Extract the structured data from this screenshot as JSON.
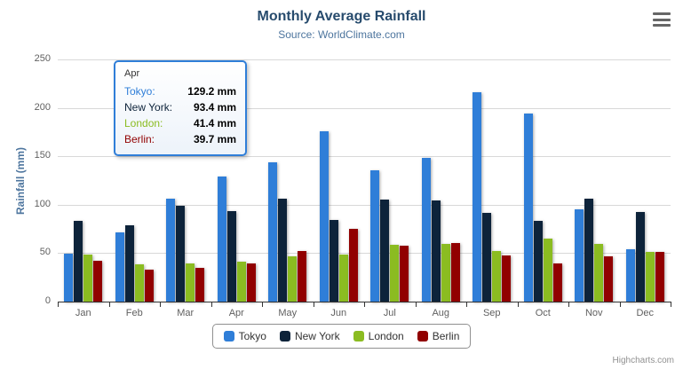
{
  "header": {
    "title": "Monthly Average Rainfall",
    "subtitle": "Source: WorldClimate.com"
  },
  "icons": {
    "export_menu": "hamburger-menu-icon"
  },
  "chart_data": {
    "type": "bar",
    "title": "Monthly Average Rainfall",
    "subtitle": "Source: WorldClimate.com",
    "xlabel": "",
    "ylabel": "Rainfall (mm)",
    "ylim": [
      0,
      250
    ],
    "yticks": [
      0,
      50,
      100,
      150,
      200,
      250
    ],
    "grid": true,
    "legend_position": "bottom",
    "value_suffix": " mm",
    "categories": [
      "Jan",
      "Feb",
      "Mar",
      "Apr",
      "May",
      "Jun",
      "Jul",
      "Aug",
      "Sep",
      "Oct",
      "Nov",
      "Dec"
    ],
    "series": [
      {
        "name": "Tokyo",
        "color": "#2f7ed8",
        "values": [
          49.9,
          71.5,
          106.4,
          129.2,
          144.0,
          176.0,
          135.6,
          148.5,
          216.4,
          194.1,
          95.6,
          54.4
        ]
      },
      {
        "name": "New York",
        "color": "#0d233a",
        "values": [
          83.6,
          78.8,
          98.5,
          93.4,
          106.0,
          84.5,
          105.0,
          104.3,
          91.2,
          83.5,
          106.6,
          92.3
        ]
      },
      {
        "name": "London",
        "color": "#8bbc21",
        "values": [
          48.9,
          38.8,
          39.3,
          41.4,
          47.0,
          48.3,
          59.0,
          59.6,
          52.4,
          65.2,
          59.3,
          51.2
        ]
      },
      {
        "name": "Berlin",
        "color": "#910000",
        "values": [
          42.4,
          33.2,
          34.5,
          39.7,
          52.6,
          75.5,
          57.4,
          60.4,
          47.6,
          39.1,
          46.8,
          51.1
        ]
      }
    ]
  },
  "tooltip": {
    "header": "Apr",
    "border_color": "#2f7ed8",
    "rows": [
      {
        "name": "Tokyo",
        "color": "#2f7ed8",
        "value": "129.2 mm"
      },
      {
        "name": "New York",
        "color": "#0d233a",
        "value": "93.4 mm"
      },
      {
        "name": "London",
        "color": "#8bbc21",
        "value": "41.4 mm"
      },
      {
        "name": "Berlin",
        "color": "#910000",
        "value": "39.7 mm"
      }
    ]
  },
  "credits": {
    "label": "Highcharts.com"
  },
  "colors": {
    "title": "#274b6d",
    "subtitle": "#4d759e",
    "axis_label": "#606060",
    "gridline": "#d8d8d8",
    "axis_line": "#333333",
    "legend_border": "#909090"
  }
}
